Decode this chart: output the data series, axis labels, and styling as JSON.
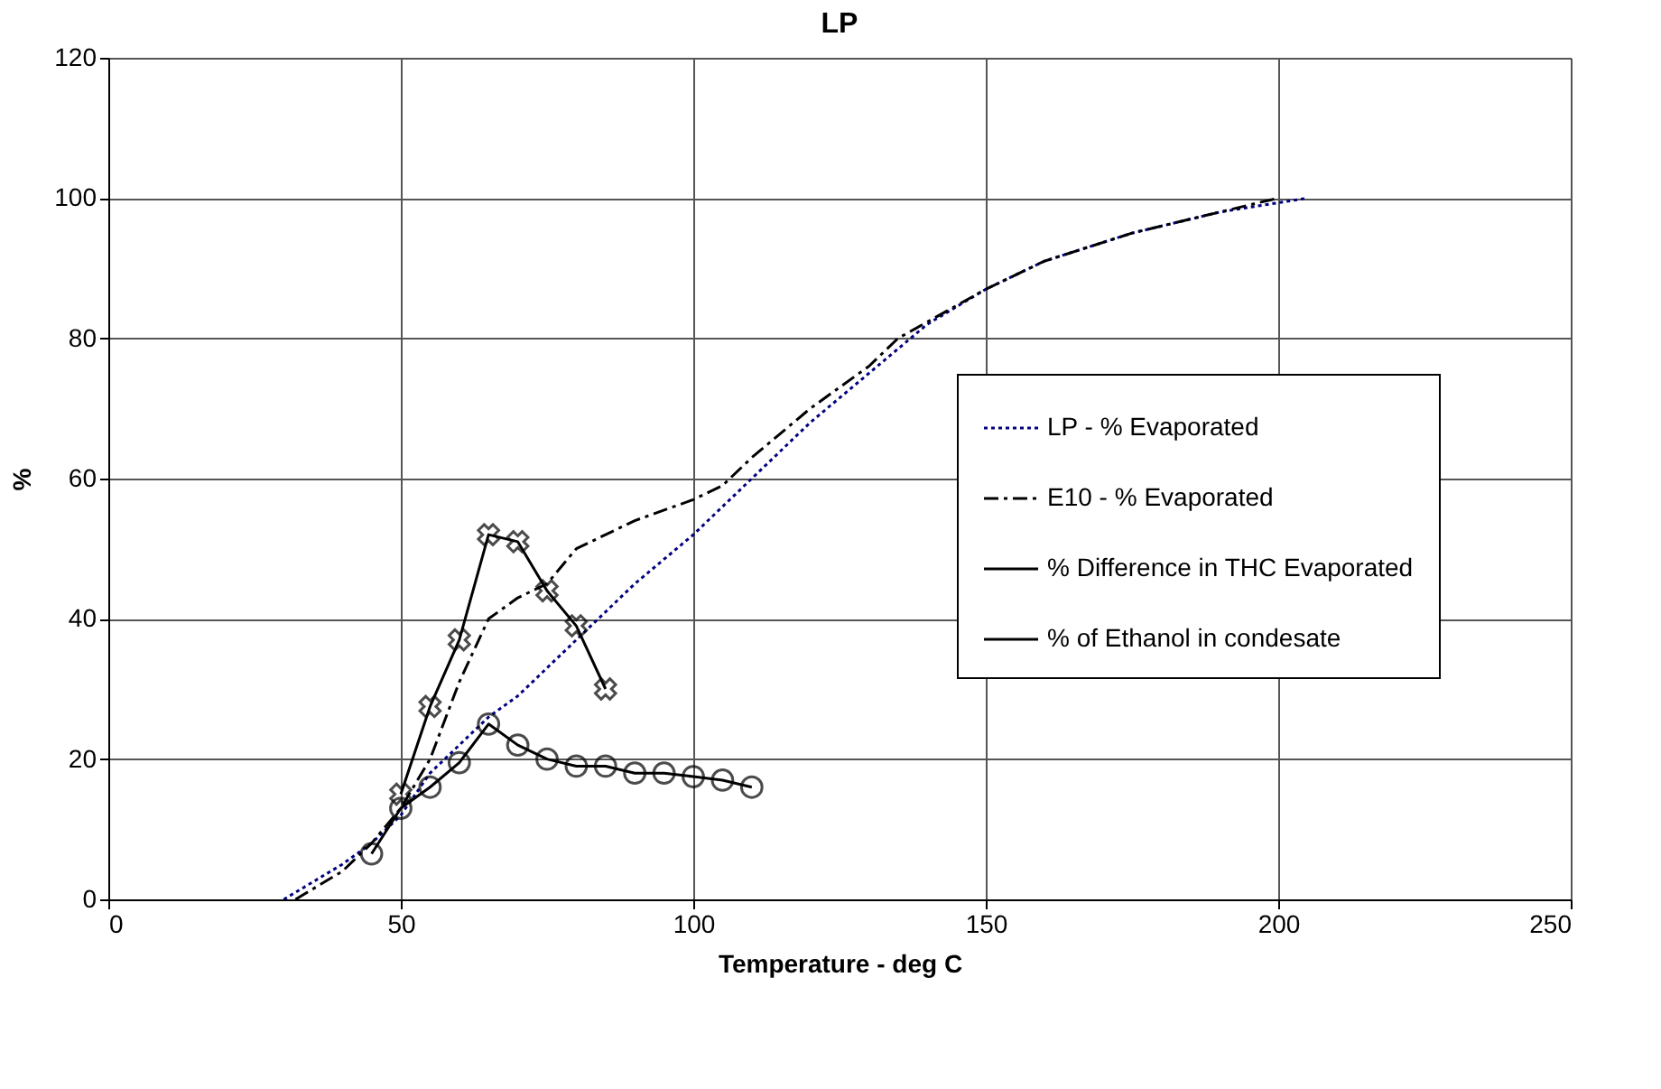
{
  "chart_data": {
    "type": "line",
    "title": "LP",
    "xlabel": "Temperature - deg C",
    "ylabel": "%",
    "xlim": [
      0,
      250
    ],
    "xticks": [
      0,
      50,
      100,
      150,
      200,
      250
    ],
    "ylim": [
      0,
      120
    ],
    "yticks": [
      0,
      20,
      40,
      60,
      80,
      100,
      120
    ],
    "grid": true,
    "legend": "right",
    "series": [
      {
        "name": "LP - % Evaporated",
        "color": "#000080",
        "line_style": "dotted",
        "marker": "none",
        "x": [
          30,
          40,
          45,
          50,
          55,
          60,
          65,
          70,
          80,
          90,
          100,
          110,
          120,
          130,
          140,
          150,
          160,
          175,
          190,
          205
        ],
        "values": [
          0,
          5,
          8,
          12,
          18,
          22,
          26,
          29,
          37,
          45,
          52,
          60,
          68,
          75,
          82,
          87,
          91,
          95,
          98,
          100
        ]
      },
      {
        "name": "E10 - % Evaporated",
        "color": "#000000",
        "line_style": "dashdot",
        "marker": "none",
        "x": [
          32,
          40,
          45,
          50,
          55,
          60,
          65,
          70,
          75,
          80,
          90,
          100,
          105,
          110,
          120,
          130,
          135,
          150,
          160,
          175,
          190,
          200
        ],
        "values": [
          0,
          4,
          8,
          13,
          20,
          31,
          40,
          43,
          45,
          50,
          54,
          57,
          59,
          63,
          70,
          76,
          80,
          87,
          91,
          95,
          98,
          100
        ]
      },
      {
        "name": "% Difference in THC Evaporated",
        "color": "#000000",
        "line_style": "solid",
        "marker": "cross",
        "x": [
          50,
          55,
          60,
          65,
          70,
          75,
          80,
          85
        ],
        "values": [
          15,
          27.5,
          37,
          52,
          51,
          44,
          39,
          30
        ]
      },
      {
        "name": "% of Ethanol in condesate",
        "color": "#000000",
        "line_style": "solid",
        "marker": "circle",
        "x": [
          45,
          50,
          55,
          60,
          65,
          70,
          75,
          80,
          85,
          90,
          95,
          100,
          105,
          110
        ],
        "values": [
          6.5,
          13,
          16,
          19.5,
          25,
          22,
          20,
          19,
          19,
          18,
          18,
          17.5,
          17,
          16
        ]
      }
    ]
  }
}
